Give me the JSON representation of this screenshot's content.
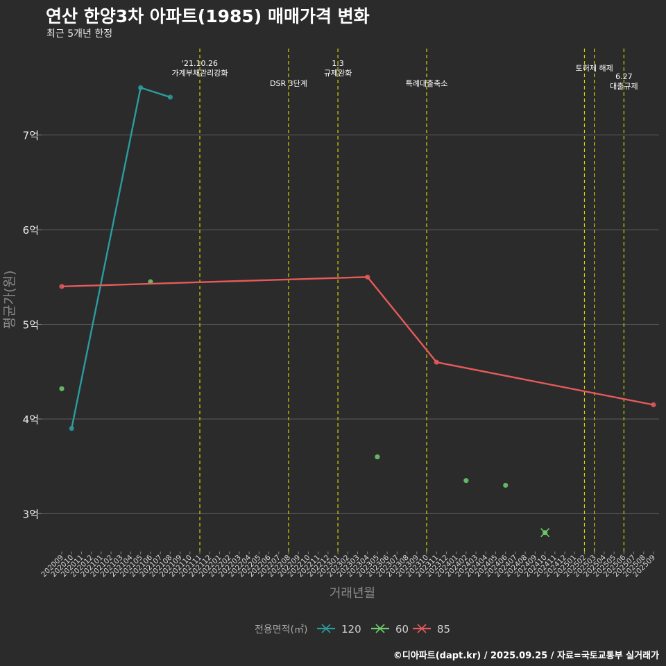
{
  "title": "연산 한양3차 아파트(1985) 매매가격 변화",
  "subtitle": "최근 5개년 한정",
  "caption": "©디아파트(dapt.kr) / 2025.09.25 / 자료=국토교통부 실거래가",
  "chart_data": {
    "type": "line",
    "xlabel": "거래년월",
    "ylabel": "평균가(원)",
    "y_unit_suffix": "억",
    "ylim": [
      2.6,
      7.95
    ],
    "yticks": [
      3,
      4,
      5,
      6,
      7
    ],
    "grid": true,
    "x": [
      "202009",
      "202010",
      "202011",
      "202012",
      "202101",
      "202102",
      "202103",
      "202104",
      "202105",
      "202106",
      "202107",
      "202108",
      "202109",
      "202110",
      "202111",
      "202112",
      "202201",
      "202202",
      "202203",
      "202204",
      "202205",
      "202206",
      "202207",
      "202208",
      "202209",
      "202210",
      "202211",
      "202212",
      "202301",
      "202302",
      "202303",
      "202304",
      "202305",
      "202306",
      "202307",
      "202308",
      "202309",
      "202310",
      "202311",
      "202312",
      "202401",
      "202402",
      "202403",
      "202404",
      "202405",
      "202406",
      "202407",
      "202408",
      "202409",
      "202410",
      "202411",
      "202412",
      "202501",
      "202502",
      "202503",
      "202504",
      "202505",
      "202506",
      "202507",
      "202508",
      "202509"
    ],
    "legend": {
      "title": "전용면적(㎡)",
      "position": "bottom"
    },
    "series": [
      {
        "name": "120",
        "color": "#2a9d9f",
        "line": true,
        "points": [
          [
            "202010",
            3.9
          ],
          [
            "202105",
            7.5
          ],
          [
            "202108",
            7.4
          ]
        ]
      },
      {
        "name": "60",
        "color": "#6fcf6f",
        "line": false,
        "points": [
          [
            "202009",
            4.32
          ],
          [
            "202106",
            5.45
          ],
          [
            "202305",
            3.6
          ],
          [
            "202402",
            3.35
          ],
          [
            "202406",
            3.3
          ],
          [
            "202410",
            2.8
          ]
        ]
      },
      {
        "name": "85",
        "color": "#e85a5a",
        "line": true,
        "points": [
          [
            "202009",
            5.4
          ],
          [
            "202304",
            5.5
          ],
          [
            "202311",
            4.6
          ],
          [
            "202509",
            4.15
          ]
        ]
      }
    ],
    "events": [
      {
        "x": "202111",
        "lines": [
          "'21.10.26",
          "가계부채관리강화"
        ],
        "row": 0
      },
      {
        "x": "202208",
        "lines": [
          "DSR 3단계"
        ],
        "row": 2
      },
      {
        "x": "202301",
        "lines": [
          "1.3",
          "규제완화"
        ],
        "row": 0
      },
      {
        "x": "202310",
        "lines": [
          "특례대출축소"
        ],
        "row": 2
      },
      {
        "x": "202502",
        "lines": [],
        "row": 1
      },
      {
        "x": "202503",
        "lines": [
          "토허제 해제"
        ],
        "row": 1
      },
      {
        "x": "202506",
        "lines": [
          "6.27",
          "대출규제"
        ],
        "row": 1.7
      }
    ]
  }
}
